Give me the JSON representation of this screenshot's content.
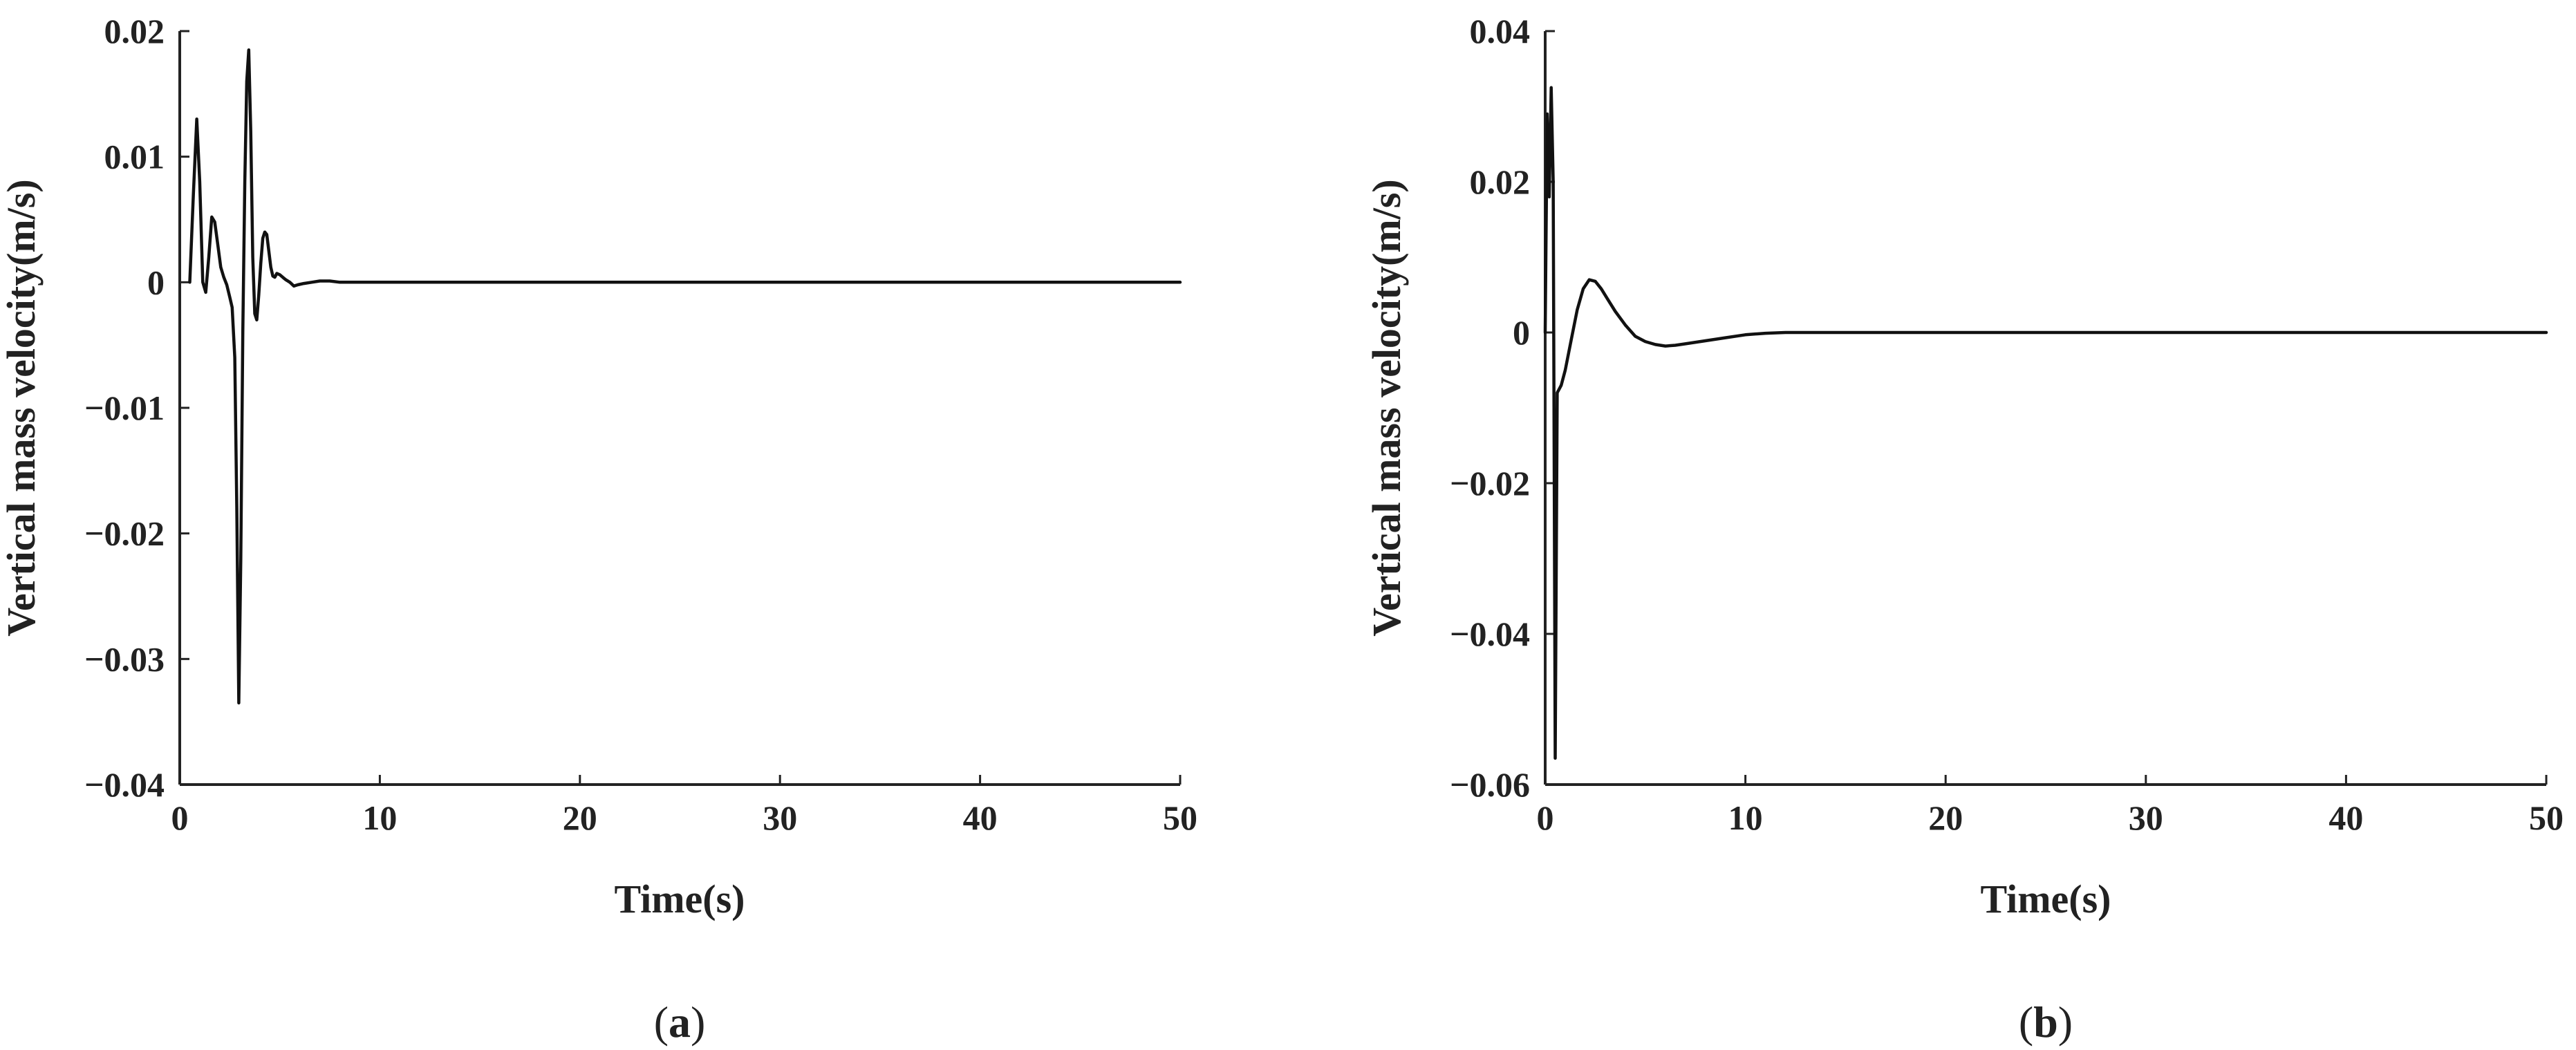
{
  "chart_data": [
    {
      "type": "line",
      "panel_label": "a",
      "xlabel": "Time(s)",
      "ylabel": "Vertical mass velocity(m/s)",
      "xlim": [
        0,
        50
      ],
      "ylim": [
        -0.04,
        0.02
      ],
      "xticks": [
        0,
        10,
        20,
        30,
        40,
        50
      ],
      "xtick_labels": [
        "0",
        "10",
        "20",
        "30",
        "40",
        "50"
      ],
      "yticks": [
        0.02,
        0.01,
        0,
        -0.01,
        -0.02,
        -0.03,
        -0.04
      ],
      "ytick_labels": [
        "0.02",
        "0.01",
        "0",
        "−0.01",
        "−0.02",
        "−0.03",
        "−0.04"
      ],
      "grid": false,
      "series": [
        {
          "x": [
            0.5,
            0.68,
            0.85,
            1.0,
            1.15,
            1.3,
            1.45,
            1.6,
            1.75,
            1.9,
            2.05,
            2.2,
            2.35,
            2.5,
            2.62,
            2.75,
            2.85,
            2.95,
            3.05,
            3.15,
            3.25,
            3.35,
            3.45,
            3.55,
            3.65,
            3.75,
            3.85,
            3.95,
            4.05,
            4.15,
            4.25,
            4.35,
            4.45,
            4.55,
            4.65,
            4.75,
            4.85,
            5.0,
            5.15,
            5.3,
            5.5,
            5.7,
            5.9,
            6.2,
            6.6,
            7.0,
            7.5,
            8.0,
            9.0,
            10.0,
            11.0,
            12.0,
            14.0,
            20.0,
            30.0,
            40.0,
            50.0
          ],
          "y": [
            0.0,
            0.007,
            0.013,
            0.008,
            0.0,
            -0.0008,
            0.002,
            0.0052,
            0.0048,
            0.003,
            0.0012,
            0.0004,
            -0.0002,
            -0.0012,
            -0.002,
            -0.006,
            -0.018,
            -0.0335,
            -0.022,
            -0.004,
            0.008,
            0.016,
            0.0185,
            0.012,
            0.002,
            -0.0025,
            -0.003,
            -0.001,
            0.0015,
            0.0035,
            0.004,
            0.0038,
            0.0025,
            0.0012,
            0.0005,
            0.0004,
            0.0007,
            0.0006,
            0.0004,
            0.0002,
            0.0,
            -0.0003,
            -0.0002,
            -0.0001,
            0.0,
            0.0001,
            0.0001,
            0.0,
            0.0,
            0.0,
            0.0,
            0.0,
            0.0,
            0.0,
            0.0,
            0.0,
            0.0
          ]
        }
      ]
    },
    {
      "type": "line",
      "panel_label": "b",
      "xlabel": "Time(s)",
      "ylabel": "Vertical mass velocity(m/s)",
      "xlim": [
        0,
        50
      ],
      "ylim": [
        -0.06,
        0.04
      ],
      "xticks": [
        0,
        10,
        20,
        30,
        40,
        50
      ],
      "xtick_labels": [
        "0",
        "10",
        "20",
        "30",
        "40",
        "50"
      ],
      "yticks": [
        0.04,
        0.02,
        0,
        -0.02,
        -0.04,
        -0.06
      ],
      "ytick_labels": [
        "0.04",
        "0.02",
        "0",
        "−0.02",
        "−0.04",
        "−0.06"
      ],
      "grid": false,
      "series": [
        {
          "x": [
            0.0,
            0.1,
            0.2,
            0.3,
            0.4,
            0.5,
            0.6,
            0.7,
            0.8,
            1.0,
            1.3,
            1.6,
            1.9,
            2.2,
            2.5,
            2.8,
            3.1,
            3.5,
            4.0,
            4.5,
            5.0,
            5.5,
            6.0,
            6.5,
            7.0,
            8.0,
            9.0,
            10.0,
            11.0,
            12.0,
            15.0,
            20.0,
            30.0,
            40.0,
            50.0
          ],
          "y": [
            0.0,
            0.029,
            0.018,
            0.0325,
            0.02,
            -0.0565,
            -0.008,
            -0.0075,
            -0.007,
            -0.005,
            -0.001,
            0.003,
            0.0058,
            0.007,
            0.0068,
            0.0058,
            0.0045,
            0.0028,
            0.001,
            -0.0005,
            -0.0012,
            -0.0016,
            -0.0018,
            -0.0017,
            -0.0015,
            -0.0011,
            -0.0007,
            -0.0003,
            -0.0001,
            0.0,
            0.0,
            0.0,
            0.0,
            0.0,
            0.0
          ]
        }
      ]
    }
  ]
}
